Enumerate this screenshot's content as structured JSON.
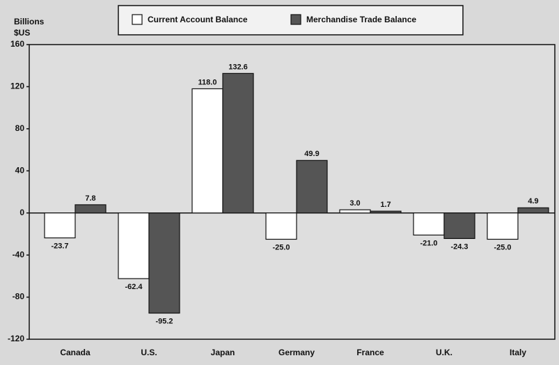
{
  "chart_data": {
    "type": "bar",
    "ylabel_lines": [
      "Billions",
      "$US"
    ],
    "categories": [
      "Canada",
      "U.S.",
      "Japan",
      "Germany",
      "France",
      "U.K.",
      "Italy"
    ],
    "series": [
      {
        "name": "Current Account Balance",
        "color": "#ffffff",
        "values": [
          -23.7,
          -62.4,
          118.0,
          -25.0,
          3.0,
          -21.0,
          -25.0
        ],
        "value_labels": [
          "-23.7",
          "-62.4",
          "118.0",
          "-25.0",
          "3.0",
          "-21.0",
          "-25.0"
        ]
      },
      {
        "name": "Merchandise Trade Balance",
        "color": "#555555",
        "values": [
          7.8,
          -95.2,
          132.6,
          49.9,
          1.7,
          -24.3,
          4.9
        ],
        "value_labels": [
          "7.8",
          "-95.2",
          "132.6",
          "49.9",
          "1.7",
          "-24.3",
          "4.9"
        ]
      }
    ],
    "ylim": [
      -120,
      160
    ],
    "yticks": [
      -120,
      -80,
      -40,
      0,
      40,
      80,
      120,
      160
    ],
    "legend": "top"
  }
}
